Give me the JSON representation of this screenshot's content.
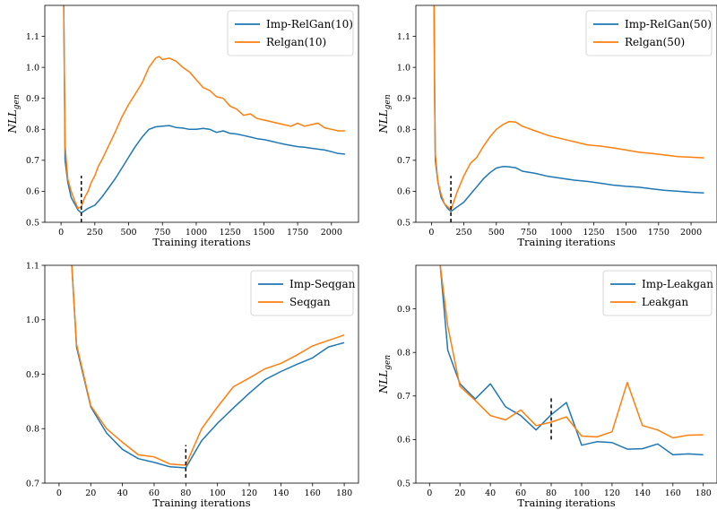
{
  "chart_data": [
    {
      "type": "line",
      "xlabel": "Training iterations",
      "ylabel": "NLL",
      "ylabel_sub": "gen",
      "xlim": [
        -120,
        2200
      ],
      "ylim": [
        0.5,
        1.2
      ],
      "xticks": [
        0,
        250,
        500,
        750,
        1000,
        1250,
        1500,
        1750,
        2000
      ],
      "yticks": [
        0.5,
        0.6,
        0.7,
        0.8,
        0.9,
        1.0,
        1.1
      ],
      "legend_position": "top-right",
      "marker_x": 150,
      "marker_y": [
        0.5,
        0.65
      ],
      "series": [
        {
          "name": "Imp-RelGan(10)",
          "color": "#1f77b4",
          "x": [
            20,
            25,
            30,
            50,
            75,
            100,
            125,
            150,
            200,
            250,
            300,
            350,
            400,
            450,
            500,
            550,
            600,
            650,
            700,
            750,
            800,
            850,
            900,
            950,
            1000,
            1050,
            1100,
            1150,
            1200,
            1250,
            1300,
            1350,
            1400,
            1450,
            1500,
            1550,
            1600,
            1650,
            1700,
            1750,
            1800,
            1850,
            1900,
            1950,
            2000,
            2050,
            2100
          ],
          "y": [
            1.2,
            0.95,
            0.7,
            0.63,
            0.58,
            0.56,
            0.54,
            0.53,
            0.545,
            0.555,
            0.58,
            0.61,
            0.64,
            0.675,
            0.71,
            0.745,
            0.775,
            0.8,
            0.808,
            0.81,
            0.812,
            0.806,
            0.804,
            0.8,
            0.8,
            0.803,
            0.8,
            0.79,
            0.795,
            0.787,
            0.785,
            0.78,
            0.775,
            0.77,
            0.767,
            0.762,
            0.757,
            0.752,
            0.748,
            0.744,
            0.742,
            0.739,
            0.736,
            0.733,
            0.728,
            0.722,
            0.72
          ]
        },
        {
          "name": "Relgan(10)",
          "color": "#ff7f0e",
          "x": [
            20,
            25,
            30,
            50,
            75,
            100,
            125,
            150,
            175,
            200,
            225,
            250,
            275,
            300,
            350,
            400,
            450,
            500,
            550,
            600,
            650,
            700,
            725,
            750,
            800,
            850,
            900,
            950,
            1000,
            1050,
            1100,
            1150,
            1200,
            1250,
            1300,
            1350,
            1400,
            1450,
            1500,
            1550,
            1600,
            1650,
            1700,
            1750,
            1800,
            1850,
            1900,
            1950,
            2000,
            2050,
            2100
          ],
          "y": [
            1.2,
            0.95,
            0.75,
            0.64,
            0.6,
            0.57,
            0.545,
            0.55,
            0.58,
            0.6,
            0.63,
            0.65,
            0.68,
            0.7,
            0.745,
            0.79,
            0.84,
            0.88,
            0.915,
            0.95,
            1.0,
            1.03,
            1.035,
            1.025,
            1.03,
            1.02,
            1.0,
            0.985,
            0.96,
            0.935,
            0.925,
            0.905,
            0.9,
            0.875,
            0.865,
            0.845,
            0.85,
            0.835,
            0.83,
            0.825,
            0.82,
            0.815,
            0.81,
            0.82,
            0.81,
            0.815,
            0.82,
            0.805,
            0.8,
            0.795,
            0.795
          ]
        }
      ]
    },
    {
      "type": "line",
      "xlabel": "Training iterations",
      "ylabel": "NLL",
      "ylabel_sub": "gen",
      "xlim": [
        -120,
        2200
      ],
      "ylim": [
        0.5,
        1.2
      ],
      "xticks": [
        0,
        250,
        500,
        750,
        1000,
        1250,
        1500,
        1750,
        2000
      ],
      "yticks": [
        0.5,
        0.6,
        0.7,
        0.8,
        0.9,
        1.0,
        1.1
      ],
      "legend_position": "top-right",
      "marker_x": 150,
      "marker_y": [
        0.5,
        0.65
      ],
      "series": [
        {
          "name": "Imp-RelGan(50)",
          "color": "#1f77b4",
          "x": [
            20,
            25,
            30,
            50,
            75,
            100,
            125,
            150,
            200,
            250,
            300,
            350,
            400,
            450,
            500,
            550,
            600,
            650,
            700,
            800,
            900,
            1000,
            1100,
            1200,
            1300,
            1400,
            1500,
            1600,
            1700,
            1800,
            1900,
            2000,
            2100
          ],
          "y": [
            1.2,
            0.9,
            0.7,
            0.63,
            0.58,
            0.56,
            0.545,
            0.535,
            0.55,
            0.565,
            0.59,
            0.615,
            0.64,
            0.66,
            0.675,
            0.68,
            0.679,
            0.676,
            0.665,
            0.658,
            0.648,
            0.642,
            0.636,
            0.632,
            0.626,
            0.62,
            0.616,
            0.613,
            0.608,
            0.603,
            0.6,
            0.597,
            0.595
          ]
        },
        {
          "name": "Relgan(50)",
          "color": "#ff7f0e",
          "x": [
            20,
            25,
            30,
            50,
            75,
            100,
            125,
            150,
            200,
            250,
            300,
            350,
            400,
            450,
            500,
            550,
            600,
            650,
            700,
            800,
            900,
            1000,
            1100,
            1200,
            1300,
            1400,
            1500,
            1600,
            1700,
            1800,
            1900,
            2000,
            2100
          ],
          "y": [
            1.2,
            0.9,
            0.72,
            0.63,
            0.59,
            0.56,
            0.55,
            0.54,
            0.6,
            0.65,
            0.69,
            0.71,
            0.745,
            0.775,
            0.8,
            0.815,
            0.825,
            0.823,
            0.81,
            0.795,
            0.78,
            0.77,
            0.76,
            0.75,
            0.746,
            0.74,
            0.733,
            0.726,
            0.722,
            0.717,
            0.712,
            0.71,
            0.708
          ]
        }
      ]
    },
    {
      "type": "line",
      "xlabel": "Training iterations",
      "ylabel": "",
      "ylabel_sub": "",
      "xlim": [
        -9,
        189
      ],
      "ylim": [
        0.7,
        1.1
      ],
      "xticks": [
        0,
        20,
        40,
        60,
        80,
        100,
        120,
        140,
        160,
        180
      ],
      "yticks": [
        0.7,
        0.8,
        0.9,
        1.0,
        1.1
      ],
      "legend_position": "top-right",
      "marker_x": 80,
      "marker_y": [
        0.71,
        0.77
      ],
      "series": [
        {
          "name": "Imp-Seqgan",
          "color": "#1f77b4",
          "x": [
            8,
            11,
            20,
            30,
            40,
            50,
            60,
            70,
            80,
            90,
            100,
            110,
            120,
            130,
            140,
            150,
            160,
            170,
            180
          ],
          "y": [
            1.1,
            0.95,
            0.84,
            0.792,
            0.762,
            0.745,
            0.738,
            0.73,
            0.728,
            0.778,
            0.81,
            0.838,
            0.865,
            0.89,
            0.905,
            0.918,
            0.93,
            0.95,
            0.958
          ]
        },
        {
          "name": "Seqgan",
          "color": "#ff7f0e",
          "x": [
            8,
            11,
            20,
            30,
            40,
            50,
            60,
            70,
            80,
            90,
            100,
            110,
            120,
            130,
            140,
            150,
            160,
            170,
            180
          ],
          "y": [
            1.1,
            0.955,
            0.842,
            0.8,
            0.775,
            0.752,
            0.748,
            0.735,
            0.733,
            0.8,
            0.84,
            0.877,
            0.893,
            0.91,
            0.92,
            0.935,
            0.952,
            0.962,
            0.972
          ]
        }
      ]
    },
    {
      "type": "line",
      "xlabel": "Training iterations",
      "ylabel": "NLL",
      "ylabel_sub": "gen",
      "xlim": [
        -9,
        189
      ],
      "ylim": [
        0.5,
        1.0
      ],
      "xticks": [
        0,
        20,
        40,
        60,
        80,
        100,
        120,
        140,
        160,
        180
      ],
      "yticks": [
        0.5,
        0.6,
        0.7,
        0.8,
        0.9
      ],
      "legend_position": "top-right",
      "marker_x": 80,
      "marker_y": [
        0.6,
        0.7
      ],
      "series": [
        {
          "name": "Imp-Leakgan",
          "color": "#1f77b4",
          "x": [
            7,
            12,
            20,
            30,
            40,
            50,
            60,
            70,
            80,
            90,
            100,
            110,
            120,
            130,
            140,
            150,
            160,
            170,
            180
          ],
          "y": [
            1.0,
            0.805,
            0.728,
            0.693,
            0.728,
            0.675,
            0.655,
            0.622,
            0.657,
            0.685,
            0.587,
            0.595,
            0.593,
            0.578,
            0.579,
            0.59,
            0.565,
            0.567,
            0.565
          ]
        },
        {
          "name": "Leakgan",
          "color": "#ff7f0e",
          "x": [
            7,
            12,
            20,
            30,
            40,
            50,
            60,
            70,
            80,
            90,
            100,
            110,
            120,
            130,
            140,
            150,
            160,
            170,
            180
          ],
          "y": [
            1.0,
            0.86,
            0.722,
            0.69,
            0.655,
            0.645,
            0.668,
            0.632,
            0.64,
            0.652,
            0.608,
            0.606,
            0.618,
            0.731,
            0.632,
            0.622,
            0.604,
            0.61,
            0.611
          ]
        }
      ]
    }
  ]
}
